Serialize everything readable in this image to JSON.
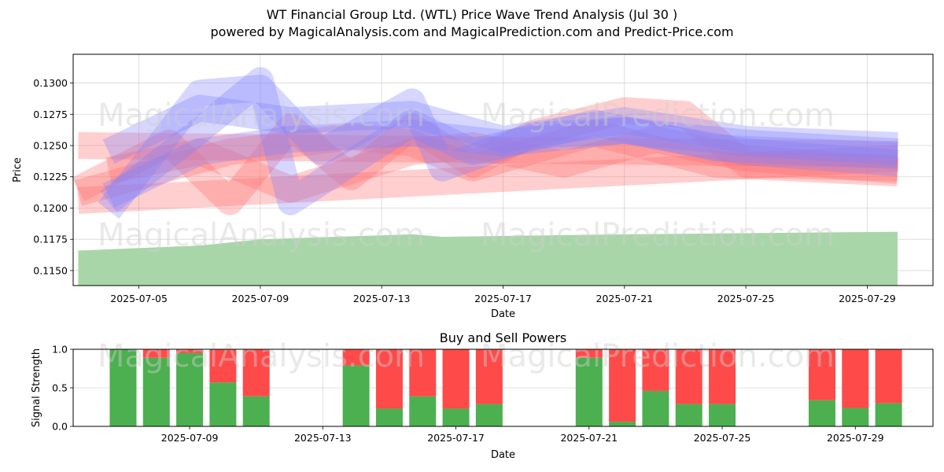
{
  "header": {
    "title": "WT Financial Group Ltd. (WTL) Price Wave Trend Analysis (Jul 30 )",
    "subtitle": "powered by MagicalAnalysis.com and MagicalPrediction.com and Predict-Price.com"
  },
  "watermarks": [
    "MagicalAnalysis.com",
    "MagicalPrediction.com"
  ],
  "colors": {
    "buy": "#4caf50",
    "sell": "#ff4a4a",
    "up_band": "#8080ff",
    "down_band": "#ff6b6b",
    "base_area": "#a9d6a9"
  },
  "chart_data": [
    {
      "type": "area",
      "xlabel": "Date",
      "ylabel": "Price",
      "x_ticks": [
        "2025-07-05",
        "2025-07-09",
        "2025-07-13",
        "2025-07-17",
        "2025-07-21",
        "2025-07-25",
        "2025-07-29"
      ],
      "y_ticks": [
        0.115,
        0.1175,
        0.12,
        0.1225,
        0.125,
        0.1275,
        0.13
      ],
      "ylim": [
        0.1138,
        0.1323
      ],
      "xlim": [
        "2025-07-02 20:00",
        "2025-07-31 04:00"
      ],
      "grid": true,
      "base_area": {
        "x": [
          "2025-07-03",
          "2025-07-07",
          "2025-07-09",
          "2025-07-14",
          "2025-07-15",
          "2025-07-21",
          "2025-07-30"
        ],
        "y": [
          0.1166,
          0.117,
          0.1175,
          0.1179,
          0.1177,
          0.1179,
          0.1181
        ]
      },
      "wave_bands": [
        {
          "color": "down",
          "x": [
            "2025-07-03",
            "2025-07-30"
          ],
          "y": [
            0.125,
            0.1243
          ]
        },
        {
          "color": "down",
          "x": [
            "2025-07-03",
            "2025-07-30"
          ],
          "y": [
            0.1206,
            0.124
          ]
        },
        {
          "color": "down",
          "x": [
            "2025-07-03",
            "2025-07-06",
            "2025-07-08",
            "2025-07-12",
            "2025-07-14",
            "2025-07-16",
            "2025-07-20",
            "2025-07-24",
            "2025-07-30"
          ],
          "y": [
            0.1212,
            0.1232,
            0.1245,
            0.1257,
            0.1252,
            0.1232,
            0.126,
            0.1235,
            0.1228
          ]
        },
        {
          "color": "down",
          "x": [
            "2025-07-03",
            "2025-07-06",
            "2025-07-08",
            "2025-07-10",
            "2025-07-12",
            "2025-07-14",
            "2025-07-16",
            "2025-07-18",
            "2025-07-21",
            "2025-07-23",
            "2025-07-25",
            "2025-07-30"
          ],
          "y": [
            0.1215,
            0.1252,
            0.1205,
            0.1265,
            0.1225,
            0.1265,
            0.1235,
            0.126,
            0.1278,
            0.1275,
            0.1235,
            0.1232
          ]
        },
        {
          "color": "down",
          "x": [
            "2025-07-04",
            "2025-07-07",
            "2025-07-10",
            "2025-07-14",
            "2025-07-16",
            "2025-07-19",
            "2025-07-22",
            "2025-07-25",
            "2025-07-30"
          ],
          "y": [
            0.123,
            0.1245,
            0.1215,
            0.1245,
            0.125,
            0.1235,
            0.1255,
            0.124,
            0.123
          ]
        },
        {
          "color": "up",
          "x": [
            "2025-07-04",
            "2025-07-07",
            "2025-07-09",
            "2025-07-11",
            "2025-07-14",
            "2025-07-15",
            "2025-07-18",
            "2025-07-21",
            "2025-07-25",
            "2025-07-30"
          ],
          "y": [
            0.1198,
            0.1292,
            0.1296,
            0.1245,
            0.1285,
            0.1232,
            0.1258,
            0.1262,
            0.1245,
            0.1236
          ]
        },
        {
          "color": "up",
          "x": [
            "2025-07-04",
            "2025-07-07",
            "2025-07-09",
            "2025-07-10",
            "2025-07-14",
            "2025-07-16",
            "2025-07-20",
            "2025-07-24",
            "2025-07-30"
          ],
          "y": [
            0.1205,
            0.1262,
            0.1302,
            0.1205,
            0.1268,
            0.1245,
            0.1268,
            0.1248,
            0.1242
          ]
        },
        {
          "color": "up",
          "x": [
            "2025-07-04",
            "2025-07-07",
            "2025-07-10",
            "2025-07-14",
            "2025-07-17",
            "2025-07-21",
            "2025-07-25",
            "2025-07-30"
          ],
          "y": [
            0.1245,
            0.128,
            0.127,
            0.1275,
            0.1255,
            0.127,
            0.1255,
            0.125
          ]
        },
        {
          "color": "up",
          "x": [
            "2025-07-04",
            "2025-07-07",
            "2025-07-10",
            "2025-07-14",
            "2025-07-17",
            "2025-07-21",
            "2025-07-25",
            "2025-07-30"
          ],
          "y": [
            0.121,
            0.1245,
            0.1255,
            0.126,
            0.1252,
            0.1262,
            0.1252,
            0.1245
          ]
        }
      ]
    },
    {
      "type": "bar",
      "title": "Buy and Sell Powers",
      "xlabel": "Date",
      "ylabel": "Signal Strength",
      "x_ticks": [
        "2025-07-09",
        "2025-07-13",
        "2025-07-17",
        "2025-07-21",
        "2025-07-25",
        "2025-07-29"
      ],
      "y_ticks": [
        0.0,
        0.5,
        1.0
      ],
      "ylim": [
        0,
        1
      ],
      "xlim": [
        "2025-07-05 12:00",
        "2025-07-31 08:00"
      ],
      "grid": true,
      "series": [
        {
          "name": "buy",
          "values": [
            1.0,
            0.89,
            0.95,
            0.57,
            0.39,
            0.79,
            0.23,
            0.39,
            0.23,
            0.29,
            0.89,
            0.06,
            0.46,
            0.29,
            0.29,
            0.34,
            0.24,
            0.3
          ]
        },
        {
          "name": "sell",
          "values": [
            0.0,
            0.11,
            0.05,
            0.43,
            0.61,
            0.21,
            0.77,
            0.61,
            0.77,
            0.71,
            0.11,
            0.94,
            0.54,
            0.71,
            0.71,
            0.66,
            0.76,
            0.7
          ]
        }
      ],
      "categories": [
        "2025-07-07",
        "2025-07-08",
        "2025-07-09",
        "2025-07-10",
        "2025-07-11",
        "2025-07-14",
        "2025-07-15",
        "2025-07-16",
        "2025-07-17",
        "2025-07-18",
        "2025-07-21",
        "2025-07-22",
        "2025-07-23",
        "2025-07-24",
        "2025-07-25",
        "2025-07-28",
        "2025-07-29",
        "2025-07-30"
      ]
    }
  ]
}
